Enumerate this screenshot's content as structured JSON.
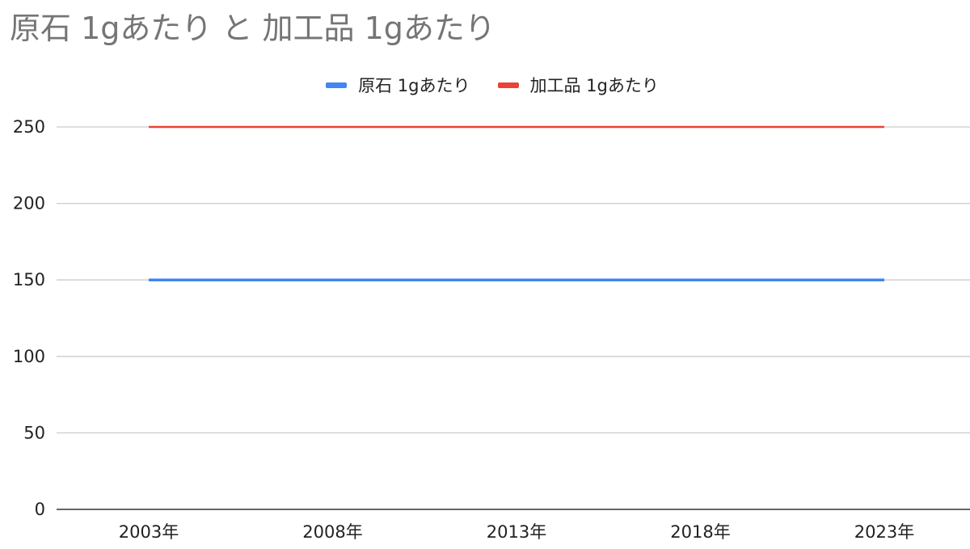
{
  "chart_data": {
    "type": "line",
    "title": "原石 1gあたり と 加工品 1gあたり",
    "xlabel": "",
    "ylabel": "",
    "categories": [
      "2003年",
      "2008年",
      "2013年",
      "2018年",
      "2023年"
    ],
    "series": [
      {
        "name": "原石 1gあたり",
        "color": "#4285f4",
        "values": [
          150,
          150,
          150,
          150,
          150
        ]
      },
      {
        "name": "加工品 1gあたり",
        "color": "#ea4335",
        "values": [
          250,
          250,
          250,
          250,
          250
        ]
      }
    ],
    "ylim": [
      0,
      250
    ],
    "yticks": [
      "0",
      "50",
      "100",
      "150",
      "200",
      "250"
    ],
    "grid": true,
    "legend_position": "top"
  }
}
